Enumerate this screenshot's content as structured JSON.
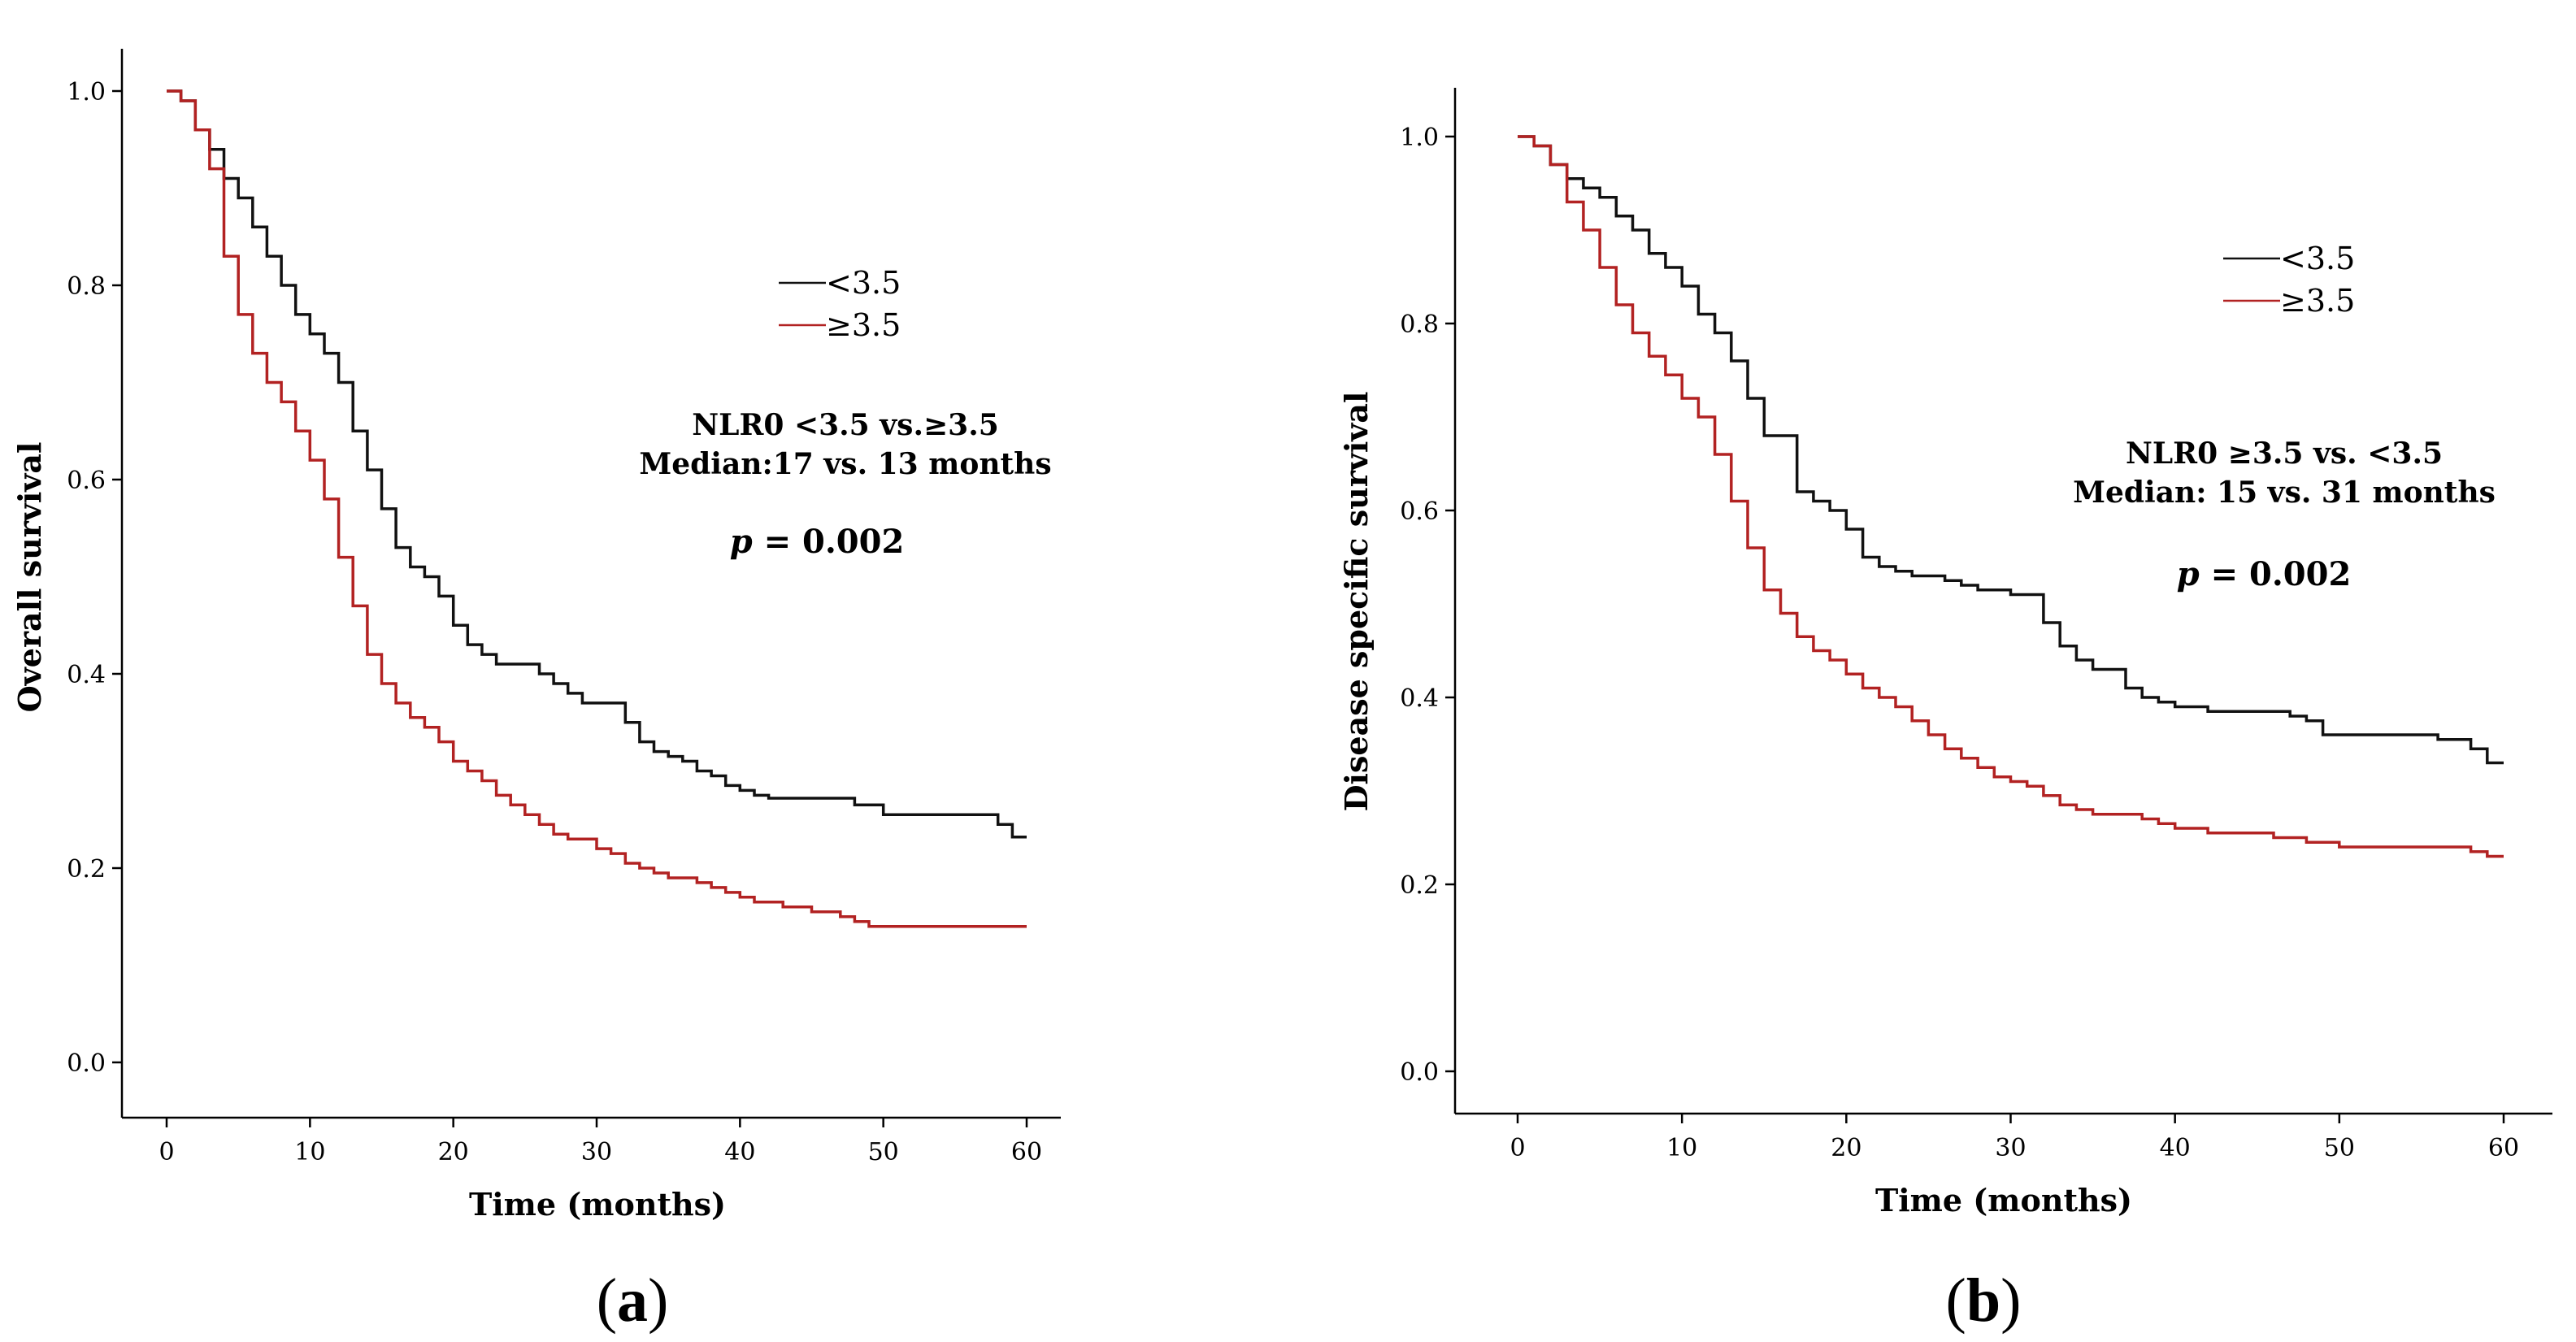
{
  "chart_data": [
    {
      "type": "line",
      "subtype": "kaplan-meier step",
      "panel_label": {
        "open": "(",
        "letter": "a",
        "close": ")"
      },
      "xlabel": "Time (months)",
      "ylabel": "Overall survival",
      "xlim": [
        0,
        60
      ],
      "ylim": [
        0,
        1
      ],
      "xticks": [
        0,
        10,
        20,
        30,
        40,
        50,
        60
      ],
      "yticks": [
        "0.0",
        "0.2",
        "0.4",
        "0.6",
        "0.8",
        "1.0"
      ],
      "legend": [
        {
          "label": "<3.5",
          "color": "#111111"
        },
        {
          "label": "≥3.5",
          "color": "#b22222"
        }
      ],
      "annotation": {
        "line1": "NLR0 <3.5 vs.≥3.5",
        "line2": "Median:17 vs. 13 months",
        "p_italic": "p",
        "p_rest": " = 0.002"
      },
      "series": [
        {
          "name": "<3.5",
          "color": "#111111",
          "points": [
            [
              0,
              1.0
            ],
            [
              1,
              0.99
            ],
            [
              2,
              0.96
            ],
            [
              3,
              0.94
            ],
            [
              4,
              0.91
            ],
            [
              5,
              0.89
            ],
            [
              6,
              0.86
            ],
            [
              7,
              0.83
            ],
            [
              8,
              0.8
            ],
            [
              9,
              0.77
            ],
            [
              10,
              0.75
            ],
            [
              11,
              0.73
            ],
            [
              12,
              0.7
            ],
            [
              13,
              0.65
            ],
            [
              14,
              0.61
            ],
            [
              15,
              0.57
            ],
            [
              16,
              0.53
            ],
            [
              17,
              0.51
            ],
            [
              18,
              0.5
            ],
            [
              19,
              0.48
            ],
            [
              20,
              0.45
            ],
            [
              21,
              0.43
            ],
            [
              22,
              0.42
            ],
            [
              23,
              0.41
            ],
            [
              24,
              0.41
            ],
            [
              25,
              0.41
            ],
            [
              26,
              0.4
            ],
            [
              27,
              0.39
            ],
            [
              28,
              0.38
            ],
            [
              29,
              0.37
            ],
            [
              30,
              0.37
            ],
            [
              31,
              0.37
            ],
            [
              32,
              0.35
            ],
            [
              33,
              0.33
            ],
            [
              34,
              0.32
            ],
            [
              35,
              0.315
            ],
            [
              36,
              0.31
            ],
            [
              37,
              0.3
            ],
            [
              38,
              0.295
            ],
            [
              39,
              0.285
            ],
            [
              40,
              0.28
            ],
            [
              41,
              0.275
            ],
            [
              42,
              0.272
            ],
            [
              44,
              0.272
            ],
            [
              46,
              0.272
            ],
            [
              48,
              0.265
            ],
            [
              50,
              0.255
            ],
            [
              52,
              0.255
            ],
            [
              54,
              0.255
            ],
            [
              56,
              0.255
            ],
            [
              58,
              0.245
            ],
            [
              59,
              0.232
            ],
            [
              60,
              0.232
            ]
          ]
        },
        {
          "name": "≥3.5",
          "color": "#b22222",
          "points": [
            [
              0,
              1.0
            ],
            [
              1,
              0.99
            ],
            [
              2,
              0.96
            ],
            [
              3,
              0.92
            ],
            [
              4,
              0.83
            ],
            [
              5,
              0.77
            ],
            [
              6,
              0.73
            ],
            [
              7,
              0.7
            ],
            [
              8,
              0.68
            ],
            [
              9,
              0.65
            ],
            [
              10,
              0.62
            ],
            [
              11,
              0.58
            ],
            [
              12,
              0.52
            ],
            [
              13,
              0.47
            ],
            [
              14,
              0.42
            ],
            [
              15,
              0.39
            ],
            [
              16,
              0.37
            ],
            [
              17,
              0.355
            ],
            [
              18,
              0.345
            ],
            [
              19,
              0.33
            ],
            [
              20,
              0.31
            ],
            [
              21,
              0.3
            ],
            [
              22,
              0.29
            ],
            [
              23,
              0.275
            ],
            [
              24,
              0.265
            ],
            [
              25,
              0.255
            ],
            [
              26,
              0.245
            ],
            [
              27,
              0.235
            ],
            [
              28,
              0.23
            ],
            [
              30,
              0.22
            ],
            [
              31,
              0.215
            ],
            [
              32,
              0.205
            ],
            [
              33,
              0.2
            ],
            [
              34,
              0.195
            ],
            [
              35,
              0.19
            ],
            [
              37,
              0.185
            ],
            [
              38,
              0.18
            ],
            [
              39,
              0.175
            ],
            [
              40,
              0.17
            ],
            [
              41,
              0.165
            ],
            [
              43,
              0.16
            ],
            [
              45,
              0.155
            ],
            [
              47,
              0.15
            ],
            [
              48,
              0.145
            ],
            [
              49,
              0.14
            ],
            [
              51,
              0.14
            ],
            [
              55,
              0.14
            ],
            [
              60,
              0.14
            ]
          ]
        }
      ]
    },
    {
      "type": "line",
      "subtype": "kaplan-meier step",
      "panel_label": {
        "open": "(",
        "letter": "b",
        "close": ")"
      },
      "xlabel": "Time (months)",
      "ylabel": "Disease specific survival",
      "xlim": [
        0,
        60
      ],
      "ylim": [
        0,
        1
      ],
      "xticks": [
        0,
        10,
        20,
        30,
        40,
        50,
        60
      ],
      "yticks": [
        "0.0",
        "0.2",
        "0.4",
        "0.6",
        "0.8",
        "1.0"
      ],
      "legend": [
        {
          "label": "<3.5",
          "color": "#111111"
        },
        {
          "label": "≥3.5",
          "color": "#b22222"
        }
      ],
      "annotation": {
        "line1": "NLR0 ≥3.5 vs. <3.5",
        "line2": "Median: 15 vs. 31 months",
        "p_italic": "p",
        "p_rest": " = 0.002"
      },
      "series": [
        {
          "name": "<3.5",
          "color": "#111111",
          "points": [
            [
              0,
              1.0
            ],
            [
              1,
              0.99
            ],
            [
              2,
              0.97
            ],
            [
              3,
              0.955
            ],
            [
              4,
              0.945
            ],
            [
              5,
              0.935
            ],
            [
              6,
              0.915
            ],
            [
              7,
              0.9
            ],
            [
              8,
              0.875
            ],
            [
              9,
              0.86
            ],
            [
              10,
              0.84
            ],
            [
              11,
              0.81
            ],
            [
              12,
              0.79
            ],
            [
              13,
              0.76
            ],
            [
              14,
              0.72
            ],
            [
              15,
              0.68
            ],
            [
              16,
              0.68
            ],
            [
              17,
              0.62
            ],
            [
              18,
              0.61
            ],
            [
              19,
              0.6
            ],
            [
              20,
              0.58
            ],
            [
              21,
              0.55
            ],
            [
              22,
              0.54
            ],
            [
              23,
              0.535
            ],
            [
              24,
              0.53
            ],
            [
              26,
              0.525
            ],
            [
              27,
              0.52
            ],
            [
              28,
              0.515
            ],
            [
              30,
              0.51
            ],
            [
              31,
              0.51
            ],
            [
              32,
              0.48
            ],
            [
              33,
              0.455
            ],
            [
              34,
              0.44
            ],
            [
              35,
              0.43
            ],
            [
              36,
              0.43
            ],
            [
              37,
              0.41
            ],
            [
              38,
              0.4
            ],
            [
              39,
              0.395
            ],
            [
              40,
              0.39
            ],
            [
              42,
              0.385
            ],
            [
              44,
              0.385
            ],
            [
              46,
              0.385
            ],
            [
              47,
              0.38
            ],
            [
              48,
              0.375
            ],
            [
              49,
              0.36
            ],
            [
              50,
              0.36
            ],
            [
              52,
              0.36
            ],
            [
              54,
              0.36
            ],
            [
              56,
              0.355
            ],
            [
              58,
              0.345
            ],
            [
              59,
              0.33
            ],
            [
              60,
              0.33
            ]
          ]
        },
        {
          "name": "≥3.5",
          "color": "#b22222",
          "points": [
            [
              0,
              1.0
            ],
            [
              1,
              0.99
            ],
            [
              2,
              0.97
            ],
            [
              3,
              0.93
            ],
            [
              4,
              0.9
            ],
            [
              5,
              0.86
            ],
            [
              6,
              0.82
            ],
            [
              7,
              0.79
            ],
            [
              8,
              0.765
            ],
            [
              9,
              0.745
            ],
            [
              10,
              0.72
            ],
            [
              11,
              0.7
            ],
            [
              12,
              0.66
            ],
            [
              13,
              0.61
            ],
            [
              14,
              0.56
            ],
            [
              15,
              0.515
            ],
            [
              16,
              0.49
            ],
            [
              17,
              0.465
            ],
            [
              18,
              0.45
            ],
            [
              19,
              0.44
            ],
            [
              20,
              0.425
            ],
            [
              21,
              0.41
            ],
            [
              22,
              0.4
            ],
            [
              23,
              0.39
            ],
            [
              24,
              0.375
            ],
            [
              25,
              0.36
            ],
            [
              26,
              0.345
            ],
            [
              27,
              0.335
            ],
            [
              28,
              0.325
            ],
            [
              29,
              0.315
            ],
            [
              30,
              0.31
            ],
            [
              31,
              0.305
            ],
            [
              32,
              0.295
            ],
            [
              33,
              0.285
            ],
            [
              34,
              0.28
            ],
            [
              35,
              0.275
            ],
            [
              37,
              0.275
            ],
            [
              38,
              0.27
            ],
            [
              39,
              0.265
            ],
            [
              40,
              0.26
            ],
            [
              42,
              0.255
            ],
            [
              44,
              0.255
            ],
            [
              46,
              0.25
            ],
            [
              48,
              0.245
            ],
            [
              50,
              0.24
            ],
            [
              55,
              0.24
            ],
            [
              58,
              0.235
            ],
            [
              59,
              0.23
            ],
            [
              60,
              0.23
            ]
          ]
        }
      ]
    }
  ]
}
